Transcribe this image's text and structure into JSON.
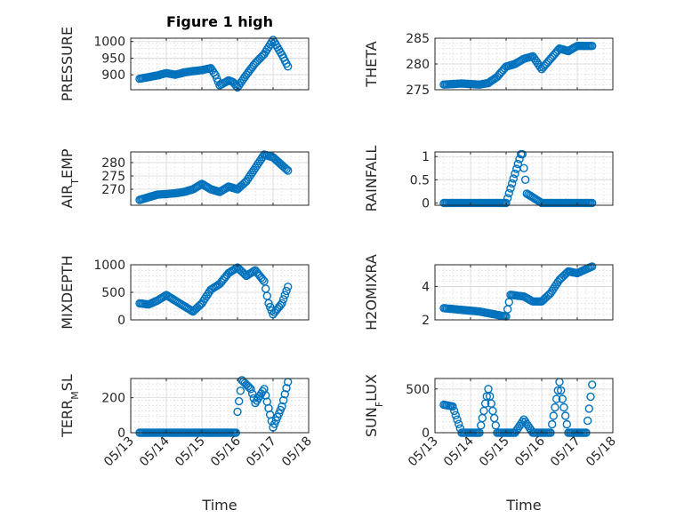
{
  "chart_data": [
    {
      "type": "scatter",
      "id": "pressure",
      "title": "Figure 1 high",
      "xlabel": "",
      "ylabel": "PRESSURE",
      "xlim": [
        "05/13",
        "05/18"
      ],
      "ylim": [
        855,
        1010
      ],
      "yticks": [
        "900",
        "950",
        "1000"
      ],
      "x_ticklabels": [],
      "grid": true,
      "marker": "circle",
      "color": "#0072bd",
      "series": [
        {
          "points": [
            [
              "05/13 06:00",
              888
            ],
            [
              "05/13 12:00",
              893
            ],
            [
              "05/13 18:00",
              898
            ],
            [
              "05/14 00:00",
              905
            ],
            [
              "05/14 06:00",
              900
            ],
            [
              "05/14 12:00",
              907
            ],
            [
              "05/14 18:00",
              911
            ],
            [
              "05/15 00:00",
              914
            ],
            [
              "05/15 06:00",
              920
            ],
            [
              "05/15 09:00",
              900
            ],
            [
              "05/15 12:00",
              868
            ],
            [
              "05/15 18:00",
              883
            ],
            [
              "05/15 21:00",
              878
            ],
            [
              "05/16 00:00",
              862
            ],
            [
              "05/16 06:00",
              900
            ],
            [
              "05/16 12:00",
              935
            ],
            [
              "05/16 18:00",
              962
            ],
            [
              "05/17 00:00",
              1005
            ],
            [
              "05/17 06:00",
              960
            ],
            [
              "05/17 10:00",
              925
            ]
          ]
        }
      ]
    },
    {
      "type": "scatter",
      "id": "theta",
      "xlabel": "",
      "ylabel": "THETA",
      "xlim": [
        "05/13",
        "05/18"
      ],
      "ylim": [
        275,
        285
      ],
      "yticks": [
        "275",
        "280",
        "285"
      ],
      "x_ticklabels": [],
      "grid": true,
      "marker": "circle",
      "color": "#0072bd",
      "series": [
        {
          "points": [
            [
              "05/13 06:00",
              276
            ],
            [
              "05/13 18:00",
              276.2
            ],
            [
              "05/14 06:00",
              276
            ],
            [
              "05/14 12:00",
              276.3
            ],
            [
              "05/14 18:00",
              277.5
            ],
            [
              "05/15 00:00",
              279.5
            ],
            [
              "05/15 06:00",
              280
            ],
            [
              "05/15 12:00",
              281
            ],
            [
              "05/15 18:00",
              281.5
            ],
            [
              "05/16 00:00",
              279
            ],
            [
              "05/16 06:00",
              281
            ],
            [
              "05/16 12:00",
              283
            ],
            [
              "05/16 18:00",
              282.5
            ],
            [
              "05/17 00:00",
              283.5
            ],
            [
              "05/17 10:00",
              283.5
            ]
          ]
        }
      ]
    },
    {
      "type": "scatter",
      "id": "air-temp",
      "xlabel": "",
      "ylabel": "AIR_TEMP",
      "xlim": [
        "05/13",
        "05/18"
      ],
      "ylim": [
        264,
        284
      ],
      "yticks": [
        "270",
        "275",
        "280"
      ],
      "x_ticklabels": [],
      "grid": true,
      "marker": "circle",
      "color": "#0072bd",
      "series": [
        {
          "points": [
            [
              "05/13 06:00",
              266
            ],
            [
              "05/13 12:00",
              267
            ],
            [
              "05/13 18:00",
              268
            ],
            [
              "05/14 00:00",
              268.2
            ],
            [
              "05/14 06:00",
              268.5
            ],
            [
              "05/14 12:00",
              269
            ],
            [
              "05/14 18:00",
              270
            ],
            [
              "05/15 00:00",
              272
            ],
            [
              "05/15 06:00",
              270
            ],
            [
              "05/15 12:00",
              269
            ],
            [
              "05/15 18:00",
              271
            ],
            [
              "05/16 00:00",
              270
            ],
            [
              "05/16 06:00",
              273
            ],
            [
              "05/16 12:00",
              278
            ],
            [
              "05/16 18:00",
              283
            ],
            [
              "05/17 00:00",
              282
            ],
            [
              "05/17 10:00",
              277
            ]
          ]
        }
      ]
    },
    {
      "type": "scatter",
      "id": "rainfall",
      "xlabel": "",
      "ylabel": "RAINFALL",
      "xlim": [
        "05/13",
        "05/18"
      ],
      "ylim": [
        -0.05,
        1.1
      ],
      "yticks": [
        "0",
        "0.5",
        "1"
      ],
      "x_ticklabels": [],
      "grid": true,
      "marker": "circle",
      "color": "#0072bd",
      "series": [
        {
          "points": [
            [
              "05/13 06:00",
              0
            ],
            [
              "05/14 00:00",
              0
            ],
            [
              "05/15 00:00",
              0
            ],
            [
              "05/15 10:00",
              1.05
            ],
            [
              "05/15 11:00",
              1.05
            ],
            [
              "05/15 12:00",
              0.75
            ],
            [
              "05/15 13:00",
              0.5
            ],
            [
              "05/15 14:00",
              0.2
            ],
            [
              "05/16 00:00",
              0
            ],
            [
              "05/17 10:00",
              0
            ]
          ]
        }
      ]
    },
    {
      "type": "scatter",
      "id": "mixdepth",
      "xlabel": "",
      "ylabel": "MIXDEPTH",
      "xlim": [
        "05/13",
        "05/18"
      ],
      "ylim": [
        0,
        1000
      ],
      "yticks": [
        "0",
        "500",
        "1000"
      ],
      "x_ticklabels": [],
      "grid": true,
      "marker": "circle",
      "color": "#0072bd",
      "series": [
        {
          "points": [
            [
              "05/13 06:00",
              300
            ],
            [
              "05/13 12:00",
              280
            ],
            [
              "05/13 18:00",
              350
            ],
            [
              "05/14 00:00",
              450
            ],
            [
              "05/14 06:00",
              350
            ],
            [
              "05/14 12:00",
              250
            ],
            [
              "05/14 18:00",
              150
            ],
            [
              "05/15 00:00",
              300
            ],
            [
              "05/15 06:00",
              550
            ],
            [
              "05/15 12:00",
              650
            ],
            [
              "05/15 18:00",
              850
            ],
            [
              "05/16 00:00",
              950
            ],
            [
              "05/16 06:00",
              800
            ],
            [
              "05/16 12:00",
              900
            ],
            [
              "05/16 18:00",
              700
            ],
            [
              "05/16 21:00",
              300
            ],
            [
              "05/17 00:00",
              100
            ],
            [
              "05/17 06:00",
              300
            ],
            [
              "05/17 10:00",
              600
            ]
          ]
        }
      ]
    },
    {
      "type": "scatter",
      "id": "h2omixra",
      "xlabel": "",
      "ylabel": "H2OMIXRA",
      "xlim": [
        "05/13",
        "05/18"
      ],
      "ylim": [
        2,
        5.3
      ],
      "yticks": [
        "2",
        "4"
      ],
      "x_ticklabels": [],
      "grid": true,
      "marker": "circle",
      "color": "#0072bd",
      "series": [
        {
          "points": [
            [
              "05/13 06:00",
              2.7
            ],
            [
              "05/13 18:00",
              2.6
            ],
            [
              "05/14 06:00",
              2.5
            ],
            [
              "05/14 18:00",
              2.3
            ],
            [
              "05/15 00:00",
              2.2
            ],
            [
              "05/15 03:00",
              3.5
            ],
            [
              "05/15 12:00",
              3.4
            ],
            [
              "05/15 18:00",
              3.1
            ],
            [
              "05/16 00:00",
              3.1
            ],
            [
              "05/16 06:00",
              3.6
            ],
            [
              "05/16 12:00",
              4.4
            ],
            [
              "05/16 18:00",
              4.9
            ],
            [
              "05/17 00:00",
              4.8
            ],
            [
              "05/17 10:00",
              5.2
            ]
          ]
        }
      ]
    },
    {
      "type": "scatter",
      "id": "terr-msl",
      "xlabel": "Time",
      "ylabel": "TERR_MSL",
      "xlim": [
        "05/13",
        "05/18"
      ],
      "ylim": [
        0,
        310
      ],
      "yticks": [
        "0",
        "200"
      ],
      "x_ticklabels": [
        "05/13",
        "05/14",
        "05/15",
        "05/16",
        "05/17",
        "05/18"
      ],
      "grid": true,
      "marker": "circle",
      "color": "#0072bd",
      "series": [
        {
          "points": [
            [
              "05/13 06:00",
              0
            ],
            [
              "05/14 00:00",
              0
            ],
            [
              "05/15 00:00",
              0
            ],
            [
              "05/15 23:00",
              0
            ],
            [
              "05/16 00:00",
              120
            ],
            [
              "05/16 03:00",
              300
            ],
            [
              "05/16 09:00",
              250
            ],
            [
              "05/16 12:00",
              170
            ],
            [
              "05/16 18:00",
              250
            ],
            [
              "05/17 00:00",
              30
            ],
            [
              "05/17 06:00",
              150
            ],
            [
              "05/17 10:00",
              290
            ]
          ]
        }
      ]
    },
    {
      "type": "scatter",
      "id": "sun-flux",
      "xlabel": "Time",
      "ylabel": "SUN_FLUX",
      "xlim": [
        "05/13",
        "05/18"
      ],
      "ylim": [
        0,
        620
      ],
      "yticks": [
        "0",
        "500"
      ],
      "x_ticklabels": [
        "05/13",
        "05/14",
        "05/15",
        "05/16",
        "05/17",
        "05/18"
      ],
      "grid": true,
      "marker": "circle",
      "color": "#0072bd",
      "series": [
        {
          "points": [
            [
              "05/13 06:00",
              320
            ],
            [
              "05/13 12:00",
              300
            ],
            [
              "05/13 18:00",
              0
            ],
            [
              "05/14 06:00",
              0
            ],
            [
              "05/14 12:00",
              500
            ],
            [
              "05/14 18:00",
              0
            ],
            [
              "05/15 06:00",
              0
            ],
            [
              "05/15 12:00",
              150
            ],
            [
              "05/15 18:00",
              0
            ],
            [
              "05/16 06:00",
              0
            ],
            [
              "05/16 12:00",
              580
            ],
            [
              "05/16 18:00",
              0
            ],
            [
              "05/17 06:00",
              0
            ],
            [
              "05/17 10:00",
              550
            ]
          ]
        }
      ]
    }
  ]
}
